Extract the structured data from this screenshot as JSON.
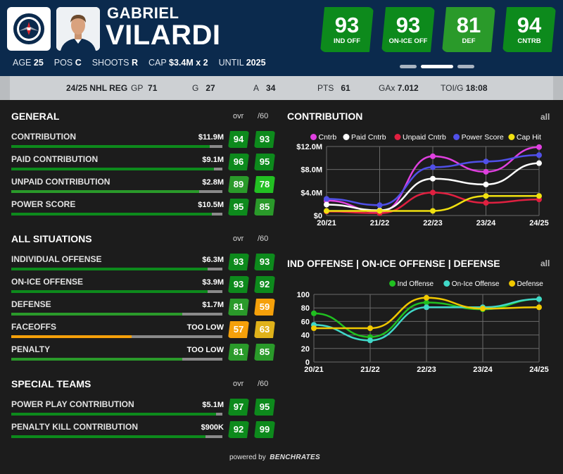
{
  "player": {
    "first_name": "GABRIEL",
    "last_name": "VILARDI",
    "info": [
      {
        "label": "AGE",
        "value": "25"
      },
      {
        "label": "POS",
        "value": "C"
      },
      {
        "label": "SHOOTS",
        "value": "R"
      },
      {
        "label": "CAP",
        "value": "$3.4M x 2"
      },
      {
        "label": "UNTIL",
        "value": "2025"
      }
    ]
  },
  "badges": [
    {
      "value": "93",
      "label": "IND OFF"
    },
    {
      "value": "93",
      "label": "ON-ICE OFF"
    },
    {
      "value": "81",
      "label": "DEF"
    },
    {
      "value": "94",
      "label": "CNTRB"
    }
  ],
  "season_stats": {
    "season": "24/25 NHL REG",
    "items": [
      {
        "label": "GP",
        "value": "71"
      },
      {
        "label": "G",
        "value": "27"
      },
      {
        "label": "A",
        "value": "34"
      },
      {
        "label": "PTS",
        "value": "61"
      },
      {
        "label": "GAx",
        "value": "7.012"
      },
      {
        "label": "TOI/G",
        "value": "18:08"
      }
    ]
  },
  "colors": {
    "elite_green": "#0d8a1c",
    "good_green": "#2a9a2a",
    "bright_green": "#22c022",
    "average_orange": "#f5a00a",
    "average_yellow": "#e0b21a",
    "header_navy": "#0b2a4d",
    "panel_bg": "#1c1c1c"
  },
  "sections": [
    {
      "title": "GENERAL",
      "col_ovr": "ovr",
      "col_p60": "/60",
      "rows": [
        {
          "name": "CONTRIBUTION",
          "value": "$11.9M",
          "ovr": "94",
          "p60": "93",
          "bar": 0.94,
          "ovr_color": "#0d8a1c",
          "p60_color": "#0d8a1c",
          "bar_color": "#0d8a1c"
        },
        {
          "name": "PAID CONTRIBUTION",
          "value": "$9.1M",
          "ovr": "96",
          "p60": "95",
          "bar": 0.96,
          "ovr_color": "#0d8a1c",
          "p60_color": "#0d8a1c",
          "bar_color": "#0d8a1c"
        },
        {
          "name": "UNPAID CONTRIBUTION",
          "value": "$2.8M",
          "ovr": "89",
          "p60": "78",
          "bar": 0.89,
          "ovr_color": "#2a9a2a",
          "p60_color": "#22c022",
          "bar_color": "#2a9a2a"
        },
        {
          "name": "POWER SCORE",
          "value": "$10.5M",
          "ovr": "95",
          "p60": "85",
          "bar": 0.95,
          "ovr_color": "#0d8a1c",
          "p60_color": "#2a9a2a",
          "bar_color": "#0d8a1c"
        }
      ]
    },
    {
      "title": "ALL SITUATIONS",
      "col_ovr": "ovr",
      "col_p60": "/60",
      "rows": [
        {
          "name": "INDIVIDUAL OFFENSE",
          "value": "$6.3M",
          "ovr": "93",
          "p60": "93",
          "bar": 0.93,
          "ovr_color": "#0d8a1c",
          "p60_color": "#0d8a1c",
          "bar_color": "#0d8a1c"
        },
        {
          "name": "ON-ICE OFFENSE",
          "value": "$3.9M",
          "ovr": "93",
          "p60": "92",
          "bar": 0.93,
          "ovr_color": "#0d8a1c",
          "p60_color": "#0d8a1c",
          "bar_color": "#0d8a1c"
        },
        {
          "name": "DEFENSE",
          "value": "$1.7M",
          "ovr": "81",
          "p60": "59",
          "bar": 0.81,
          "ovr_color": "#2a9a2a",
          "p60_color": "#f5a00a",
          "bar_color": "#2a9a2a"
        },
        {
          "name": "FACEOFFS",
          "value": "TOO LOW",
          "ovr": "57",
          "p60": "63",
          "bar": 0.57,
          "ovr_color": "#f5a00a",
          "p60_color": "#e0b21a",
          "bar_color": "#f5a00a"
        },
        {
          "name": "PENALTY",
          "value": "TOO LOW",
          "ovr": "81",
          "p60": "85",
          "bar": 0.81,
          "ovr_color": "#2a9a2a",
          "p60_color": "#2a9a2a",
          "bar_color": "#2a9a2a"
        }
      ]
    },
    {
      "title": "SPECIAL TEAMS",
      "col_ovr": "ovr",
      "col_p60": "/60",
      "rows": [
        {
          "name": "POWER PLAY CONTRIBUTION",
          "value": "$5.1M",
          "ovr": "97",
          "p60": "95",
          "bar": 0.97,
          "ovr_color": "#0d8a1c",
          "p60_color": "#0d8a1c",
          "bar_color": "#0d8a1c"
        },
        {
          "name": "PENALTY KILL CONTRIBUTION",
          "value": "$900K",
          "ovr": "92",
          "p60": "99",
          "bar": 0.92,
          "ovr_color": "#0d8a1c",
          "p60_color": "#0d8a1c",
          "bar_color": "#0d8a1c"
        }
      ]
    }
  ],
  "chart_data": [
    {
      "type": "line",
      "title": "CONTRIBUTION",
      "filter_label": "all",
      "x": [
        "20/21",
        "21/22",
        "22/23",
        "23/24",
        "24/25"
      ],
      "y_ticks": [
        "$0",
        "$4.0M",
        "$8.0M",
        "$12.0M"
      ],
      "ylim": [
        0,
        12
      ],
      "legend_position": "top",
      "grid": true,
      "series": [
        {
          "name": "Cntrb",
          "color": "#e040e0",
          "values": [
            2.6,
            0.6,
            10.3,
            7.6,
            11.9
          ]
        },
        {
          "name": "Paid Cntrb",
          "color": "#ffffff",
          "values": [
            1.9,
            0.9,
            6.4,
            5.4,
            9.1
          ]
        },
        {
          "name": "Unpaid Cntrb",
          "color": "#e02040",
          "values": [
            0.7,
            0.4,
            4.0,
            2.2,
            2.8
          ]
        },
        {
          "name": "Power Score",
          "color": "#5050e8",
          "values": [
            2.9,
            1.8,
            8.4,
            9.4,
            10.5
          ]
        },
        {
          "name": "Cap Hit",
          "color": "#f0e010",
          "values": [
            0.8,
            0.8,
            0.8,
            3.4,
            3.4
          ]
        }
      ]
    },
    {
      "type": "line",
      "title": "IND OFFENSE | ON-ICE OFFENSE | DEFENSE",
      "filter_label": "all",
      "x": [
        "20/21",
        "21/22",
        "22/23",
        "23/24",
        "24/25"
      ],
      "y_ticks": [
        "0",
        "20",
        "40",
        "60",
        "80",
        "100"
      ],
      "ylim": [
        0,
        100
      ],
      "legend_position": "top-right",
      "grid": true,
      "series": [
        {
          "name": "Ind Offense",
          "color": "#20c020",
          "values": [
            72,
            37,
            88,
            78,
            93
          ]
        },
        {
          "name": "On-Ice Offense",
          "color": "#40d8c8",
          "values": [
            55,
            32,
            81,
            81,
            93
          ]
        },
        {
          "name": "Defense",
          "color": "#f0c800",
          "values": [
            50,
            50,
            95,
            79,
            81
          ]
        }
      ]
    }
  ],
  "footer": {
    "prefix": "powered by",
    "brand": "BENCHRATES"
  }
}
